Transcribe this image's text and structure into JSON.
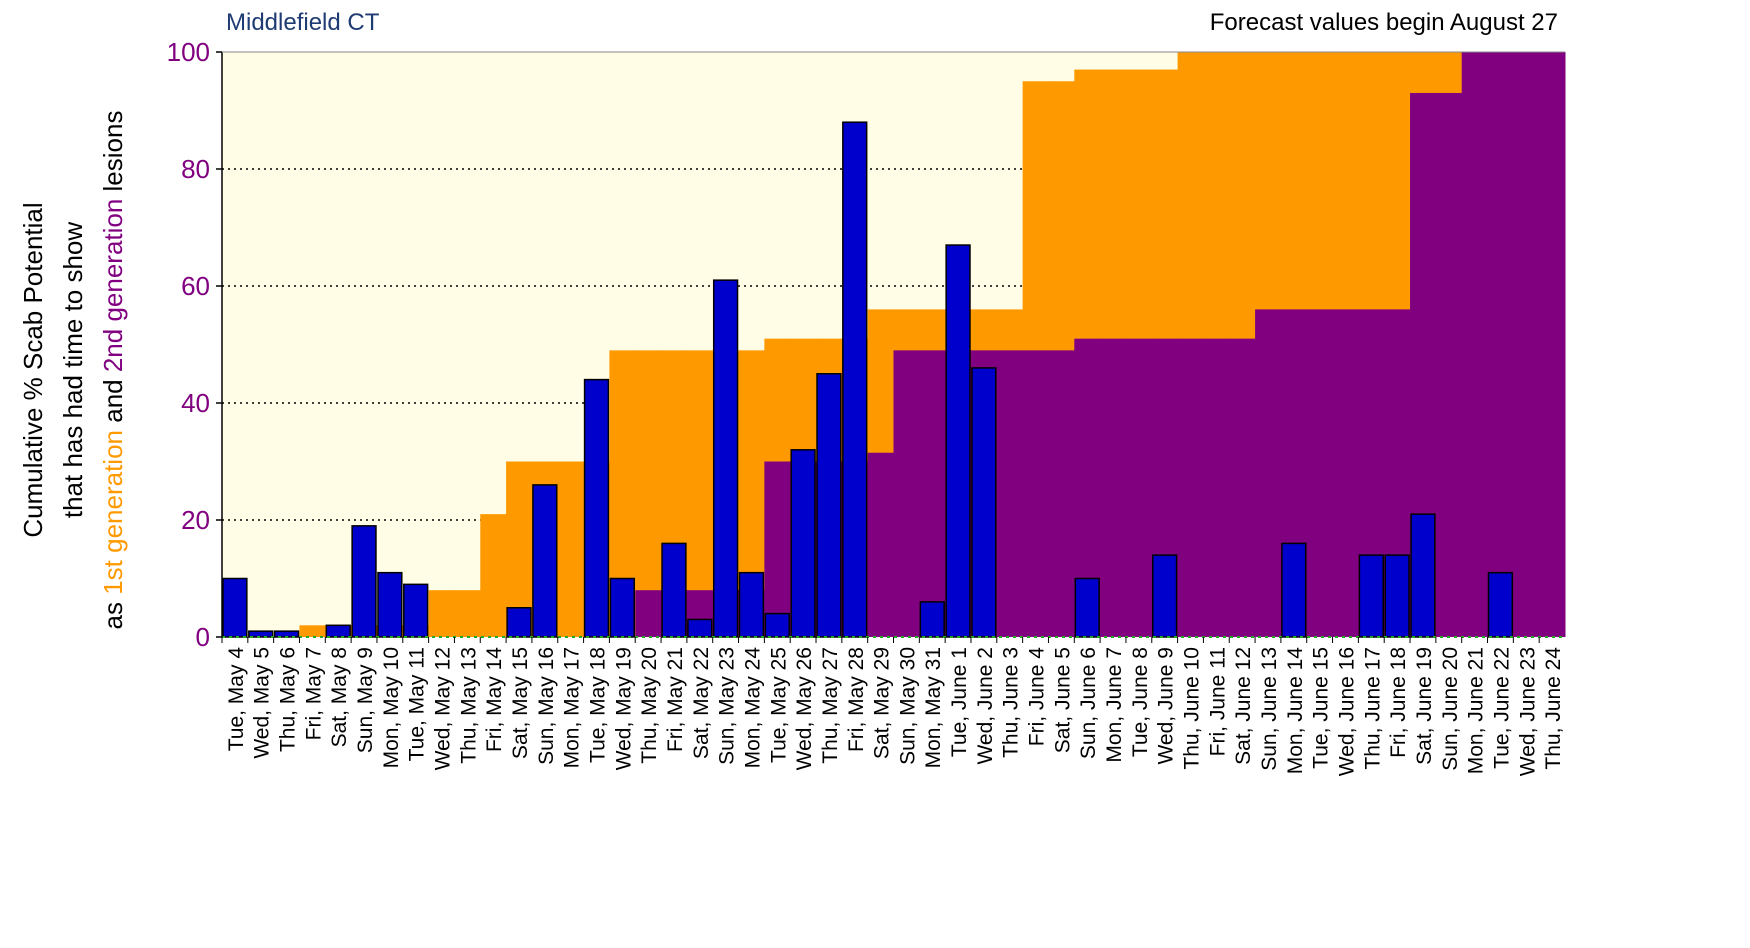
{
  "chart_data": {
    "type": "bar",
    "title": "Middlefield CT",
    "subtitle": "Forecast values begin August 27",
    "y_label_lines": [
      "Cumulative % Scab Potential",
      "that has had time to show"
    ],
    "y_label_parts": [
      "as ",
      "1st generation",
      " and ",
      "2nd generation",
      " lesions"
    ],
    "categories": [
      "Tue, May 4",
      "Wed, May 5",
      "Thu, May 6",
      "Fri, May 7",
      "Sat, May 8",
      "Sun, May 9",
      "Mon, May 10",
      "Tue, May 11",
      "Wed, May 12",
      "Thu, May 13",
      "Fri, May 14",
      "Sat, May 15",
      "Sun, May 16",
      "Mon, May 17",
      "Tue, May 18",
      "Wed, May 19",
      "Thu, May 20",
      "Fri, May 21",
      "Sat, May 22",
      "Sun, May 23",
      "Mon, May 24",
      "Tue, May 25",
      "Wed, May 26",
      "Thu, May 27",
      "Fri, May 28",
      "Sat, May 29",
      "Sun, May 30",
      "Mon, May 31",
      "Tue, June 1",
      "Wed, June 2",
      "Thu, June 3",
      "Fri, June 4",
      "Sat, June 5",
      "Sun, June 6",
      "Mon, June 7",
      "Tue, June 8",
      "Wed, June 9",
      "Thu, June 10",
      "Fri, June 11",
      "Sat, June 12",
      "Sun, June 13",
      "Mon, June 14",
      "Tue, June 15",
      "Wed, June 16",
      "Thu, June 17",
      "Fri, June 18",
      "Sat, June 19",
      "Sun, June 20",
      "Mon, June 21",
      "Tue, June 22",
      "Wed, June 23",
      "Thu, June 24"
    ],
    "series": [
      {
        "name": "1st generation",
        "kind": "step-area",
        "color": "#ff9900",
        "values": [
          0,
          0,
          0,
          2,
          2,
          2,
          2,
          2,
          8,
          8,
          21,
          30,
          30,
          30,
          30,
          49,
          49,
          49,
          49,
          49,
          49,
          51,
          51,
          51,
          51,
          56,
          56,
          56,
          56,
          56,
          56,
          95,
          95,
          97,
          97,
          97,
          97,
          100,
          100,
          100,
          100,
          100,
          100,
          100,
          100,
          100,
          100,
          100,
          100,
          100,
          100,
          100
        ]
      },
      {
        "name": "2nd generation",
        "kind": "step-area",
        "color": "#800080",
        "values": [
          0,
          0,
          0,
          0,
          0,
          0,
          0,
          0,
          0,
          0,
          0,
          0,
          0,
          0,
          0,
          0,
          8,
          8,
          8,
          8,
          8,
          30,
          30,
          30,
          30,
          31.5,
          49,
          49,
          49,
          49,
          49,
          49,
          49,
          51,
          51,
          51,
          51,
          51,
          51,
          51,
          56,
          56,
          56,
          56,
          56,
          56,
          93,
          93,
          100,
          100,
          100,
          100
        ]
      },
      {
        "kind": "bar",
        "color": "#0000cc",
        "values": [
          10,
          1,
          1,
          0,
          2,
          19,
          11,
          9,
          0,
          0,
          0,
          5,
          26,
          0,
          44,
          10,
          0,
          16,
          3,
          61,
          11,
          4,
          32,
          45,
          88,
          0,
          0,
          6,
          67,
          46,
          0,
          0,
          0,
          10,
          0,
          0,
          14,
          0,
          0,
          0,
          0,
          16,
          0,
          0,
          14,
          14,
          21,
          0,
          0,
          11,
          0,
          0
        ]
      }
    ],
    "ylim": [
      0,
      100
    ],
    "yticks": [
      0,
      20,
      40,
      60,
      80,
      100
    ],
    "grid": true,
    "background": "#fffde6",
    "tick_color": "#800080",
    "title_color": "#1f3b73"
  }
}
